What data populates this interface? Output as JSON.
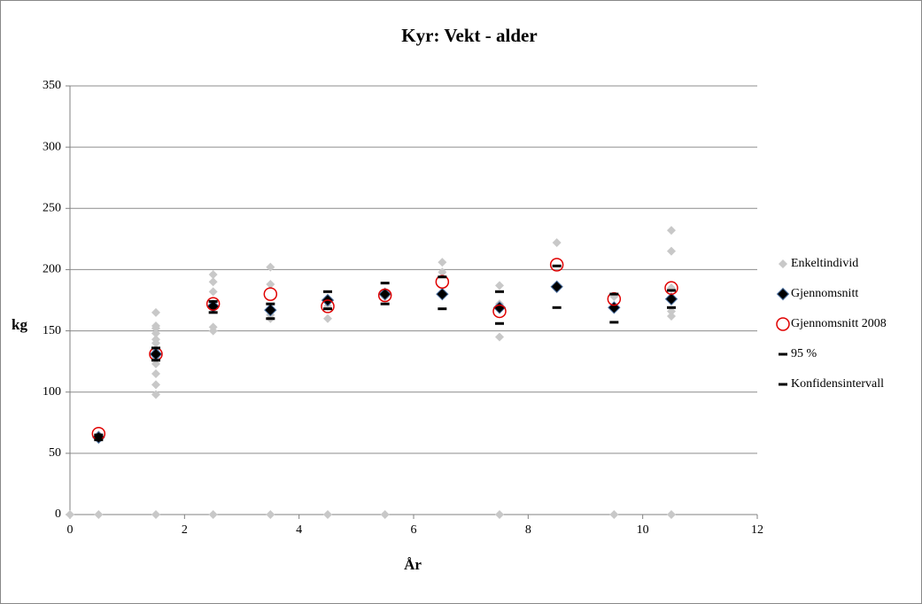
{
  "chart_data": {
    "type": "scatter",
    "title": "Kyr: Vekt - alder",
    "x_label": "År",
    "y_label": "kg",
    "xlim": [
      0,
      12
    ],
    "xticks": [
      0,
      2,
      4,
      6,
      8,
      10,
      12
    ],
    "ylim": [
      0,
      350
    ],
    "yticks": [
      0,
      50,
      100,
      150,
      200,
      250,
      300,
      350
    ],
    "grid": true,
    "legend": "right",
    "series": [
      {
        "name": "Enkeltindivid",
        "color": "#c8c8c8",
        "marker": "diamond",
        "x": [
          0,
          0.5,
          0.5,
          0.5,
          1.5,
          1.5,
          1.5,
          1.5,
          1.5,
          1.5,
          1.5,
          1.5,
          1.5,
          1.5,
          1.5,
          1.5,
          1.5,
          1.5,
          2.5,
          2.5,
          2.5,
          2.5,
          2.5,
          2.5,
          2.5,
          2.5,
          3.5,
          3.5,
          3.5,
          3.5,
          3.5,
          3.5,
          4.5,
          4.5,
          4.5,
          4.5,
          5.5,
          5.5,
          5.5,
          6.5,
          6.5,
          6.5,
          7.5,
          7.5,
          7.5,
          7.5,
          8.5,
          8.5,
          9.5,
          9.5,
          9.5,
          10.5,
          10.5,
          10.5,
          10.5,
          10.5,
          10.5,
          10.5
        ],
        "values": [
          0,
          0,
          63,
          65,
          0,
          98,
          106,
          115,
          123,
          128,
          131,
          135,
          140,
          143,
          148,
          152,
          154,
          165,
          0,
          150,
          153,
          168,
          172,
          182,
          190,
          196,
          0,
          160,
          163,
          168,
          188,
          202,
          0,
          160,
          170,
          175,
          0,
          178,
          182,
          180,
          198,
          206,
          0,
          145,
          172,
          187,
          186,
          222,
          0,
          170,
          178,
          0,
          162,
          166,
          176,
          185,
          215,
          232
        ]
      },
      {
        "name": "Gjennomsnitt",
        "color": "#000000",
        "marker": "diamond-outlined",
        "x": [
          0.5,
          1.5,
          2.5,
          3.5,
          4.5,
          5.5,
          6.5,
          7.5,
          8.5,
          9.5,
          10.5
        ],
        "values": [
          63,
          131,
          170,
          167,
          175,
          180,
          180,
          169,
          186,
          169,
          176
        ]
      },
      {
        "name": "Gjennomsnitt 2008",
        "color": "#e00000",
        "marker": "circle",
        "x": [
          0.5,
          1.5,
          2.5,
          3.5,
          4.5,
          5.5,
          6.5,
          7.5,
          8.5,
          9.5,
          10.5
        ],
        "values": [
          66,
          131,
          172,
          180,
          170,
          179,
          190,
          166,
          204,
          176,
          185
        ]
      },
      {
        "name": "95 %",
        "color": "#000000",
        "marker": "dash",
        "x": [
          0.5,
          1.5,
          2.5,
          3.5,
          4.5,
          5.5,
          6.5,
          7.5,
          8.5,
          9.5,
          10.5
        ],
        "values": [
          65,
          136,
          174,
          172,
          182,
          189,
          194,
          182,
          203,
          180,
          183
        ]
      },
      {
        "name": "Konfidensintervall",
        "color": "#000000",
        "marker": "dash",
        "x": [
          0.5,
          1.5,
          2.5,
          3.5,
          4.5,
          5.5,
          6.5,
          7.5,
          8.5,
          9.5,
          10.5
        ],
        "values": [
          61,
          126,
          165,
          160,
          168,
          172,
          168,
          156,
          169,
          157,
          169
        ]
      }
    ]
  }
}
